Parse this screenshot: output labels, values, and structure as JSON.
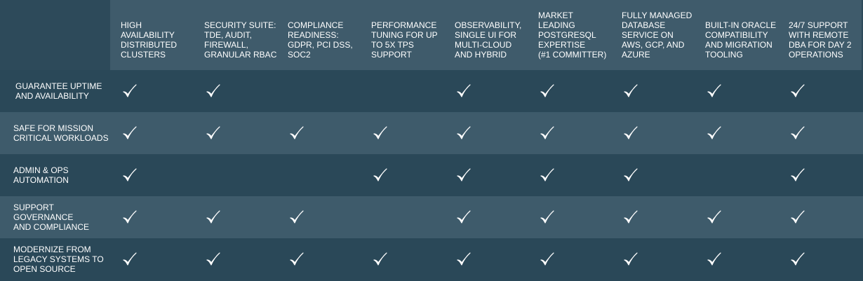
{
  "table": {
    "columns": [
      "HIGH\nAVAILABILITY\nDISTRIBUTED\nCLUSTERS",
      "SECURITY SUITE:\nTDE, AUDIT,\nFIREWALL,\nGRANULAR RBAC",
      "COMPLIANCE\nREADINESS:\nGDPR, PCI DSS,\nSOC2",
      "PERFORMANCE\nTUNING FOR UP\nTO 5X TPS\nSUPPORT",
      "OBSERVABILITY,\nSINGLE UI FOR\nMULTI-CLOUD\nAND HYBRID",
      "MARKET\nLEADING\nPOSTGRESQL\nEXPERTISE\n(#1 COMMITTER)",
      "FULLY MANAGED\nDATABASE\nSERVICE ON\nAWS, GCP, AND\nAZURE",
      "BUILT-IN ORACLE\nCOMPATIBILITY\nAND MIGRATION\nTOOLING",
      "24/7 SUPPORT\nWITH REMOTE\nDBA FOR DAY 2\nOPERATIONS"
    ],
    "rows": [
      {
        "label": "GUARANTEE UPTIME\nAND AVAILABILITY",
        "checks": [
          true,
          true,
          false,
          false,
          true,
          true,
          true,
          true,
          true
        ]
      },
      {
        "label": "SAFE FOR MISSION\nCRITICAL WORKLOADS",
        "checks": [
          true,
          true,
          true,
          true,
          true,
          true,
          true,
          true,
          true
        ]
      },
      {
        "label": "ADMIN & OPS\nAUTOMATION",
        "checks": [
          true,
          false,
          false,
          true,
          true,
          true,
          true,
          false,
          true
        ]
      },
      {
        "label": "SUPPORT\nGOVERNANCE\nAND COMPLIANCE",
        "checks": [
          true,
          true,
          true,
          false,
          true,
          true,
          true,
          true,
          true
        ]
      },
      {
        "label": "MODERNIZE FROM\nLEGACY SYSTEMS TO\nOPEN SOURCE",
        "checks": [
          true,
          true,
          true,
          true,
          true,
          true,
          true,
          true,
          true
        ]
      }
    ]
  }
}
